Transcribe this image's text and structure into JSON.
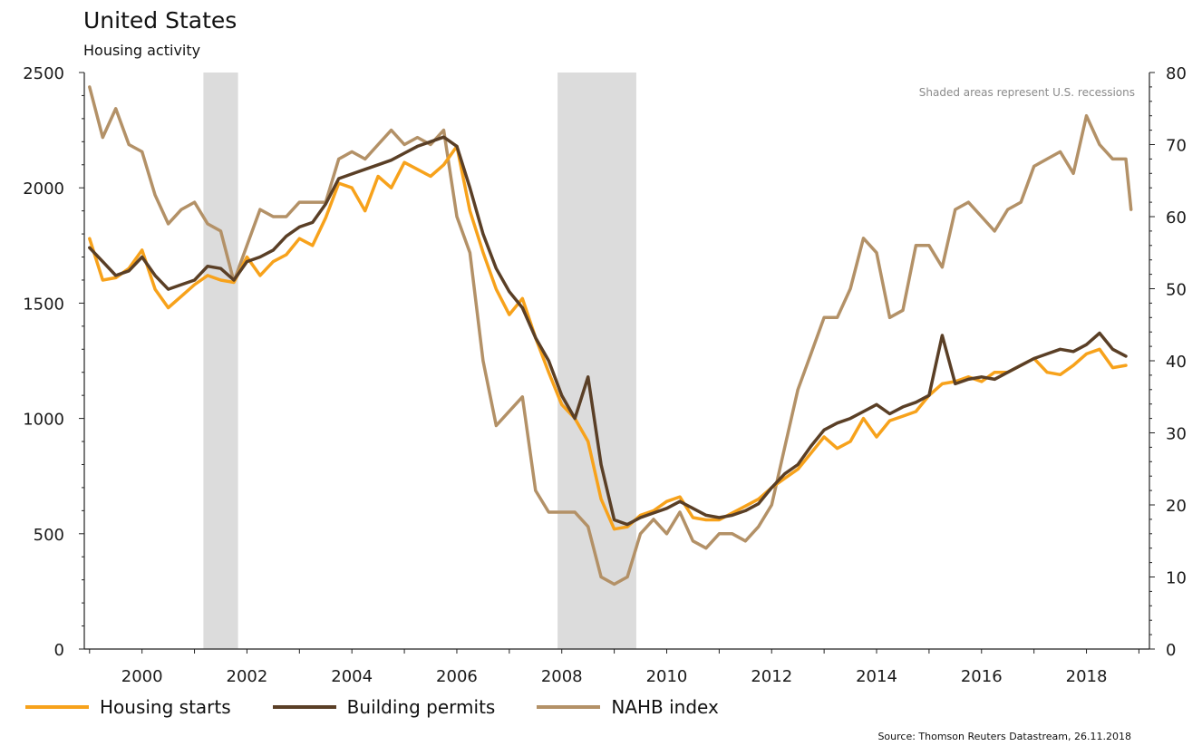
{
  "header": {
    "title": "United States",
    "subtitle": "Housing activity"
  },
  "note": "Shaded areas represent U.S. recessions",
  "source": "Source: Thomson Reuters Datastream, 26.11.2018",
  "chart_data": {
    "type": "line",
    "title": "United States",
    "subtitle": "Housing activity",
    "xlim": [
      1998.9,
      2019.2
    ],
    "x_ticks": [
      2000,
      2002,
      2004,
      2006,
      2008,
      2010,
      2012,
      2014,
      2016,
      2018
    ],
    "y_left": {
      "lim": [
        0,
        2500
      ],
      "ticks": [
        0,
        500,
        1000,
        1500,
        2000,
        2500
      ]
    },
    "y_right": {
      "lim": [
        0,
        80
      ],
      "ticks": [
        0,
        10,
        20,
        30,
        40,
        50,
        60,
        70,
        80
      ]
    },
    "grid": false,
    "legend_position": "bottom",
    "recessions": [
      [
        2001.17,
        2001.83
      ],
      [
        2007.92,
        2009.42
      ]
    ],
    "series": [
      {
        "name": "Housing starts",
        "axis": "left",
        "color": "#f7a21b",
        "x": [
          1999.0,
          1999.25,
          1999.5,
          1999.75,
          2000.0,
          2000.25,
          2000.5,
          2000.75,
          2001.0,
          2001.25,
          2001.5,
          2001.75,
          2002.0,
          2002.25,
          2002.5,
          2002.75,
          2003.0,
          2003.25,
          2003.5,
          2003.75,
          2004.0,
          2004.25,
          2004.5,
          2004.75,
          2005.0,
          2005.25,
          2005.5,
          2005.75,
          2006.0,
          2006.25,
          2006.5,
          2006.75,
          2007.0,
          2007.25,
          2007.5,
          2007.75,
          2008.0,
          2008.25,
          2008.5,
          2008.75,
          2009.0,
          2009.25,
          2009.5,
          2009.75,
          2010.0,
          2010.25,
          2010.5,
          2010.75,
          2011.0,
          2011.25,
          2011.5,
          2011.75,
          2012.0,
          2012.25,
          2012.5,
          2012.75,
          2013.0,
          2013.25,
          2013.5,
          2013.75,
          2014.0,
          2014.25,
          2014.5,
          2014.75,
          2015.0,
          2015.25,
          2015.5,
          2015.75,
          2016.0,
          2016.25,
          2016.5,
          2016.75,
          2017.0,
          2017.25,
          2017.5,
          2017.75,
          2018.0,
          2018.25,
          2018.5,
          2018.75
        ],
        "values": [
          1780,
          1600,
          1610,
          1650,
          1730,
          1560,
          1480,
          1530,
          1580,
          1620,
          1600,
          1590,
          1700,
          1620,
          1680,
          1710,
          1780,
          1750,
          1870,
          2020,
          2000,
          1900,
          2050,
          2000,
          2110,
          2080,
          2050,
          2100,
          2180,
          1900,
          1720,
          1560,
          1450,
          1520,
          1350,
          1200,
          1060,
          1000,
          900,
          650,
          520,
          530,
          580,
          600,
          640,
          660,
          570,
          560,
          560,
          590,
          620,
          650,
          700,
          740,
          780,
          850,
          920,
          870,
          900,
          1000,
          920,
          990,
          1010,
          1030,
          1100,
          1150,
          1160,
          1180,
          1160,
          1200,
          1200,
          1230,
          1260,
          1200,
          1190,
          1230,
          1280,
          1300,
          1220,
          1230
        ]
      },
      {
        "name": "Building permits",
        "axis": "left",
        "color": "#5a3f26",
        "x": [
          1999.0,
          1999.25,
          1999.5,
          1999.75,
          2000.0,
          2000.25,
          2000.5,
          2000.75,
          2001.0,
          2001.25,
          2001.5,
          2001.75,
          2002.0,
          2002.25,
          2002.5,
          2002.75,
          2003.0,
          2003.25,
          2003.5,
          2003.75,
          2004.0,
          2004.25,
          2004.5,
          2004.75,
          2005.0,
          2005.25,
          2005.5,
          2005.75,
          2006.0,
          2006.25,
          2006.5,
          2006.75,
          2007.0,
          2007.25,
          2007.5,
          2007.75,
          2008.0,
          2008.25,
          2008.5,
          2008.75,
          2009.0,
          2009.25,
          2009.5,
          2009.75,
          2010.0,
          2010.25,
          2010.5,
          2010.75,
          2011.0,
          2011.25,
          2011.5,
          2011.75,
          2012.0,
          2012.25,
          2012.5,
          2012.75,
          2013.0,
          2013.25,
          2013.5,
          2013.75,
          2014.0,
          2014.25,
          2014.5,
          2014.75,
          2015.0,
          2015.25,
          2015.5,
          2015.75,
          2016.0,
          2016.25,
          2016.5,
          2016.75,
          2017.0,
          2017.25,
          2017.5,
          2017.75,
          2018.0,
          2018.25,
          2018.5,
          2018.75
        ],
        "values": [
          1740,
          1680,
          1620,
          1640,
          1700,
          1620,
          1560,
          1580,
          1600,
          1660,
          1650,
          1600,
          1680,
          1700,
          1730,
          1790,
          1830,
          1850,
          1930,
          2040,
          2060,
          2080,
          2100,
          2120,
          2150,
          2180,
          2200,
          2220,
          2180,
          2000,
          1800,
          1650,
          1550,
          1480,
          1350,
          1250,
          1100,
          1000,
          1180,
          800,
          560,
          540,
          570,
          590,
          610,
          640,
          610,
          580,
          570,
          580,
          600,
          630,
          700,
          760,
          800,
          880,
          950,
          980,
          1000,
          1030,
          1060,
          1020,
          1050,
          1070,
          1100,
          1360,
          1150,
          1170,
          1180,
          1170,
          1200,
          1230,
          1260,
          1280,
          1300,
          1290,
          1320,
          1370,
          1300,
          1270
        ]
      },
      {
        "name": "NAHB index",
        "axis": "right",
        "color": "#b39167",
        "x": [
          1999.0,
          1999.25,
          1999.5,
          1999.75,
          2000.0,
          2000.25,
          2000.5,
          2000.75,
          2001.0,
          2001.25,
          2001.5,
          2001.75,
          2002.0,
          2002.25,
          2002.5,
          2002.75,
          2003.0,
          2003.25,
          2003.5,
          2003.75,
          2004.0,
          2004.25,
          2004.5,
          2004.75,
          2005.0,
          2005.25,
          2005.5,
          2005.75,
          2006.0,
          2006.25,
          2006.5,
          2006.75,
          2007.0,
          2007.25,
          2007.5,
          2007.75,
          2008.0,
          2008.25,
          2008.5,
          2008.75,
          2009.0,
          2009.25,
          2009.5,
          2009.75,
          2010.0,
          2010.25,
          2010.5,
          2010.75,
          2011.0,
          2011.25,
          2011.5,
          2011.75,
          2012.0,
          2012.25,
          2012.5,
          2012.75,
          2013.0,
          2013.25,
          2013.5,
          2013.75,
          2014.0,
          2014.25,
          2014.5,
          2014.75,
          2015.0,
          2015.25,
          2015.5,
          2015.75,
          2016.0,
          2016.25,
          2016.5,
          2016.75,
          2017.0,
          2017.25,
          2017.5,
          2017.75,
          2018.0,
          2018.25,
          2018.5,
          2018.75,
          2018.85
        ],
        "values": [
          78,
          71,
          75,
          70,
          69,
          63,
          59,
          61,
          62,
          59,
          58,
          51,
          56,
          61,
          60,
          60,
          62,
          62,
          62,
          68,
          69,
          68,
          70,
          72,
          70,
          71,
          70,
          72,
          60,
          55,
          40,
          31,
          33,
          35,
          22,
          19,
          19,
          19,
          17,
          10,
          9,
          10,
          16,
          18,
          16,
          19,
          15,
          14,
          16,
          16,
          15,
          17,
          20,
          28,
          36,
          41,
          46,
          46,
          50,
          57,
          55,
          46,
          47,
          56,
          56,
          53,
          61,
          62,
          60,
          58,
          61,
          62,
          67,
          68,
          69,
          66,
          74,
          70,
          68,
          68,
          61
        ]
      }
    ]
  }
}
